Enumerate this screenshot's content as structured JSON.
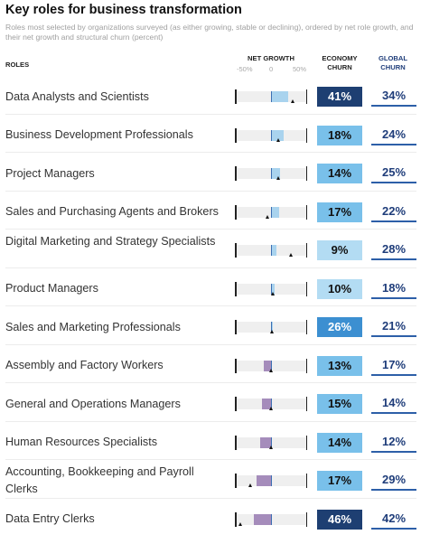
{
  "title": "Key roles for business transformation",
  "subtitle": "Roles most selected by organizations surveyed (as either growing, stable or declining), ordered by net role growth, and their net growth and structural churn (percent)",
  "headers": {
    "roles": "ROLES",
    "net_growth": "NET GROWTH",
    "economy_churn": "ECONOMY CHURN",
    "global_churn": "GLOBAL CHURN"
  },
  "ticks": [
    "-50%",
    "0",
    "50%"
  ],
  "colors": {
    "growth_bar": "#a9d3ee",
    "decline_bar": "#a58cbb",
    "churn_dark": "#1e3f72",
    "churn_mid": "#3c8fd1",
    "churn_light": "#79c0ea",
    "churn_pale": "#b3dcf3",
    "global_text": "#1f3d7a"
  },
  "chart_data": {
    "type": "table",
    "title": "Key roles for business transformation",
    "x_range": [
      -50,
      50
    ],
    "rows": [
      {
        "role": "Data Analysts and Scientists",
        "economy_net_growth": 24,
        "global_net_growth": 30,
        "economy_churn": "41%",
        "global_churn": "34%"
      },
      {
        "role": "Business Development Professionals",
        "economy_net_growth": 18,
        "global_net_growth": 11,
        "economy_churn": "18%",
        "global_churn": "24%"
      },
      {
        "role": "Project Managers",
        "economy_net_growth": 13,
        "global_net_growth": 10,
        "economy_churn": "14%",
        "global_churn": "25%"
      },
      {
        "role": "Sales and Purchasing Agents and Brokers",
        "economy_net_growth": 11,
        "global_net_growth": -5,
        "economy_churn": "17%",
        "global_churn": "22%"
      },
      {
        "role": "Digital Marketing and Strategy Specialists",
        "economy_net_growth": 7,
        "global_net_growth": 28,
        "economy_churn": "9%",
        "global_churn": "28%"
      },
      {
        "role": "Product Managers",
        "economy_net_growth": 5,
        "global_net_growth": 3,
        "economy_churn": "10%",
        "global_churn": "18%"
      },
      {
        "role": "Sales and Marketing Professionals",
        "economy_net_growth": 3,
        "global_net_growth": 2,
        "economy_churn": "26%",
        "global_churn": "21%"
      },
      {
        "role": "Assembly and Factory Workers",
        "economy_net_growth": -10,
        "global_net_growth": 0,
        "economy_churn": "13%",
        "global_churn": "17%"
      },
      {
        "role": "General and Operations Managers",
        "economy_net_growth": -13,
        "global_net_growth": 0,
        "economy_churn": "15%",
        "global_churn": "14%"
      },
      {
        "role": "Human Resources Specialists",
        "economy_net_growth": -15,
        "global_net_growth": 0,
        "economy_churn": "14%",
        "global_churn": "12%"
      },
      {
        "role": "Accounting, Bookkeeping and Payroll Clerks",
        "economy_net_growth": -20,
        "global_net_growth": -28,
        "economy_churn": "17%",
        "global_churn": "29%"
      },
      {
        "role": "Data Entry Clerks",
        "economy_net_growth": -24,
        "global_net_growth": -42,
        "economy_churn": "46%",
        "global_churn": "42%"
      }
    ]
  }
}
